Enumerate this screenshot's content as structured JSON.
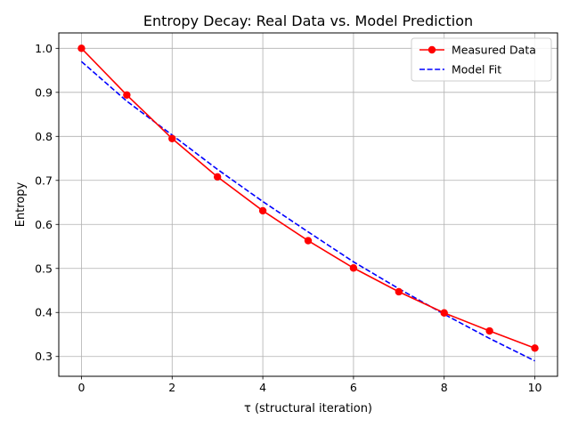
{
  "chart_data": {
    "type": "line",
    "title": "Entropy Decay: Real Data vs. Model Prediction",
    "xlabel": "τ (structural iteration)",
    "ylabel": "Entropy",
    "xlim": [
      -0.5,
      10.5
    ],
    "ylim": [
      0.255,
      1.035
    ],
    "xticks": [
      0,
      2,
      4,
      6,
      8,
      10
    ],
    "yticks": [
      0.3,
      0.4,
      0.5,
      0.6,
      0.7,
      0.8,
      0.9,
      1.0
    ],
    "xtick_labels": [
      "0",
      "2",
      "4",
      "6",
      "8",
      "10"
    ],
    "ytick_labels": [
      "0.3",
      "0.4",
      "0.5",
      "0.6",
      "0.7",
      "0.8",
      "0.9",
      "1.0"
    ],
    "grid": true,
    "legend_position": "top-right",
    "series": [
      {
        "name": "Measured Data",
        "color": "#ff0000",
        "style": "solid-with-markers",
        "x": [
          0,
          1,
          2,
          3,
          4,
          5,
          6,
          7,
          8,
          9,
          10
        ],
        "y": [
          1.0,
          0.894,
          0.795,
          0.708,
          0.631,
          0.563,
          0.501,
          0.447,
          0.399,
          0.358,
          0.319
        ]
      },
      {
        "name": "Model Fit",
        "color": "#0000ff",
        "style": "dashed",
        "x": [
          0,
          1,
          2,
          3,
          4,
          5,
          6,
          7,
          8,
          9,
          10
        ],
        "y": [
          0.97,
          0.88,
          0.803,
          0.725,
          0.652,
          0.583,
          0.515,
          0.454,
          0.396,
          0.341,
          0.29
        ]
      }
    ]
  }
}
